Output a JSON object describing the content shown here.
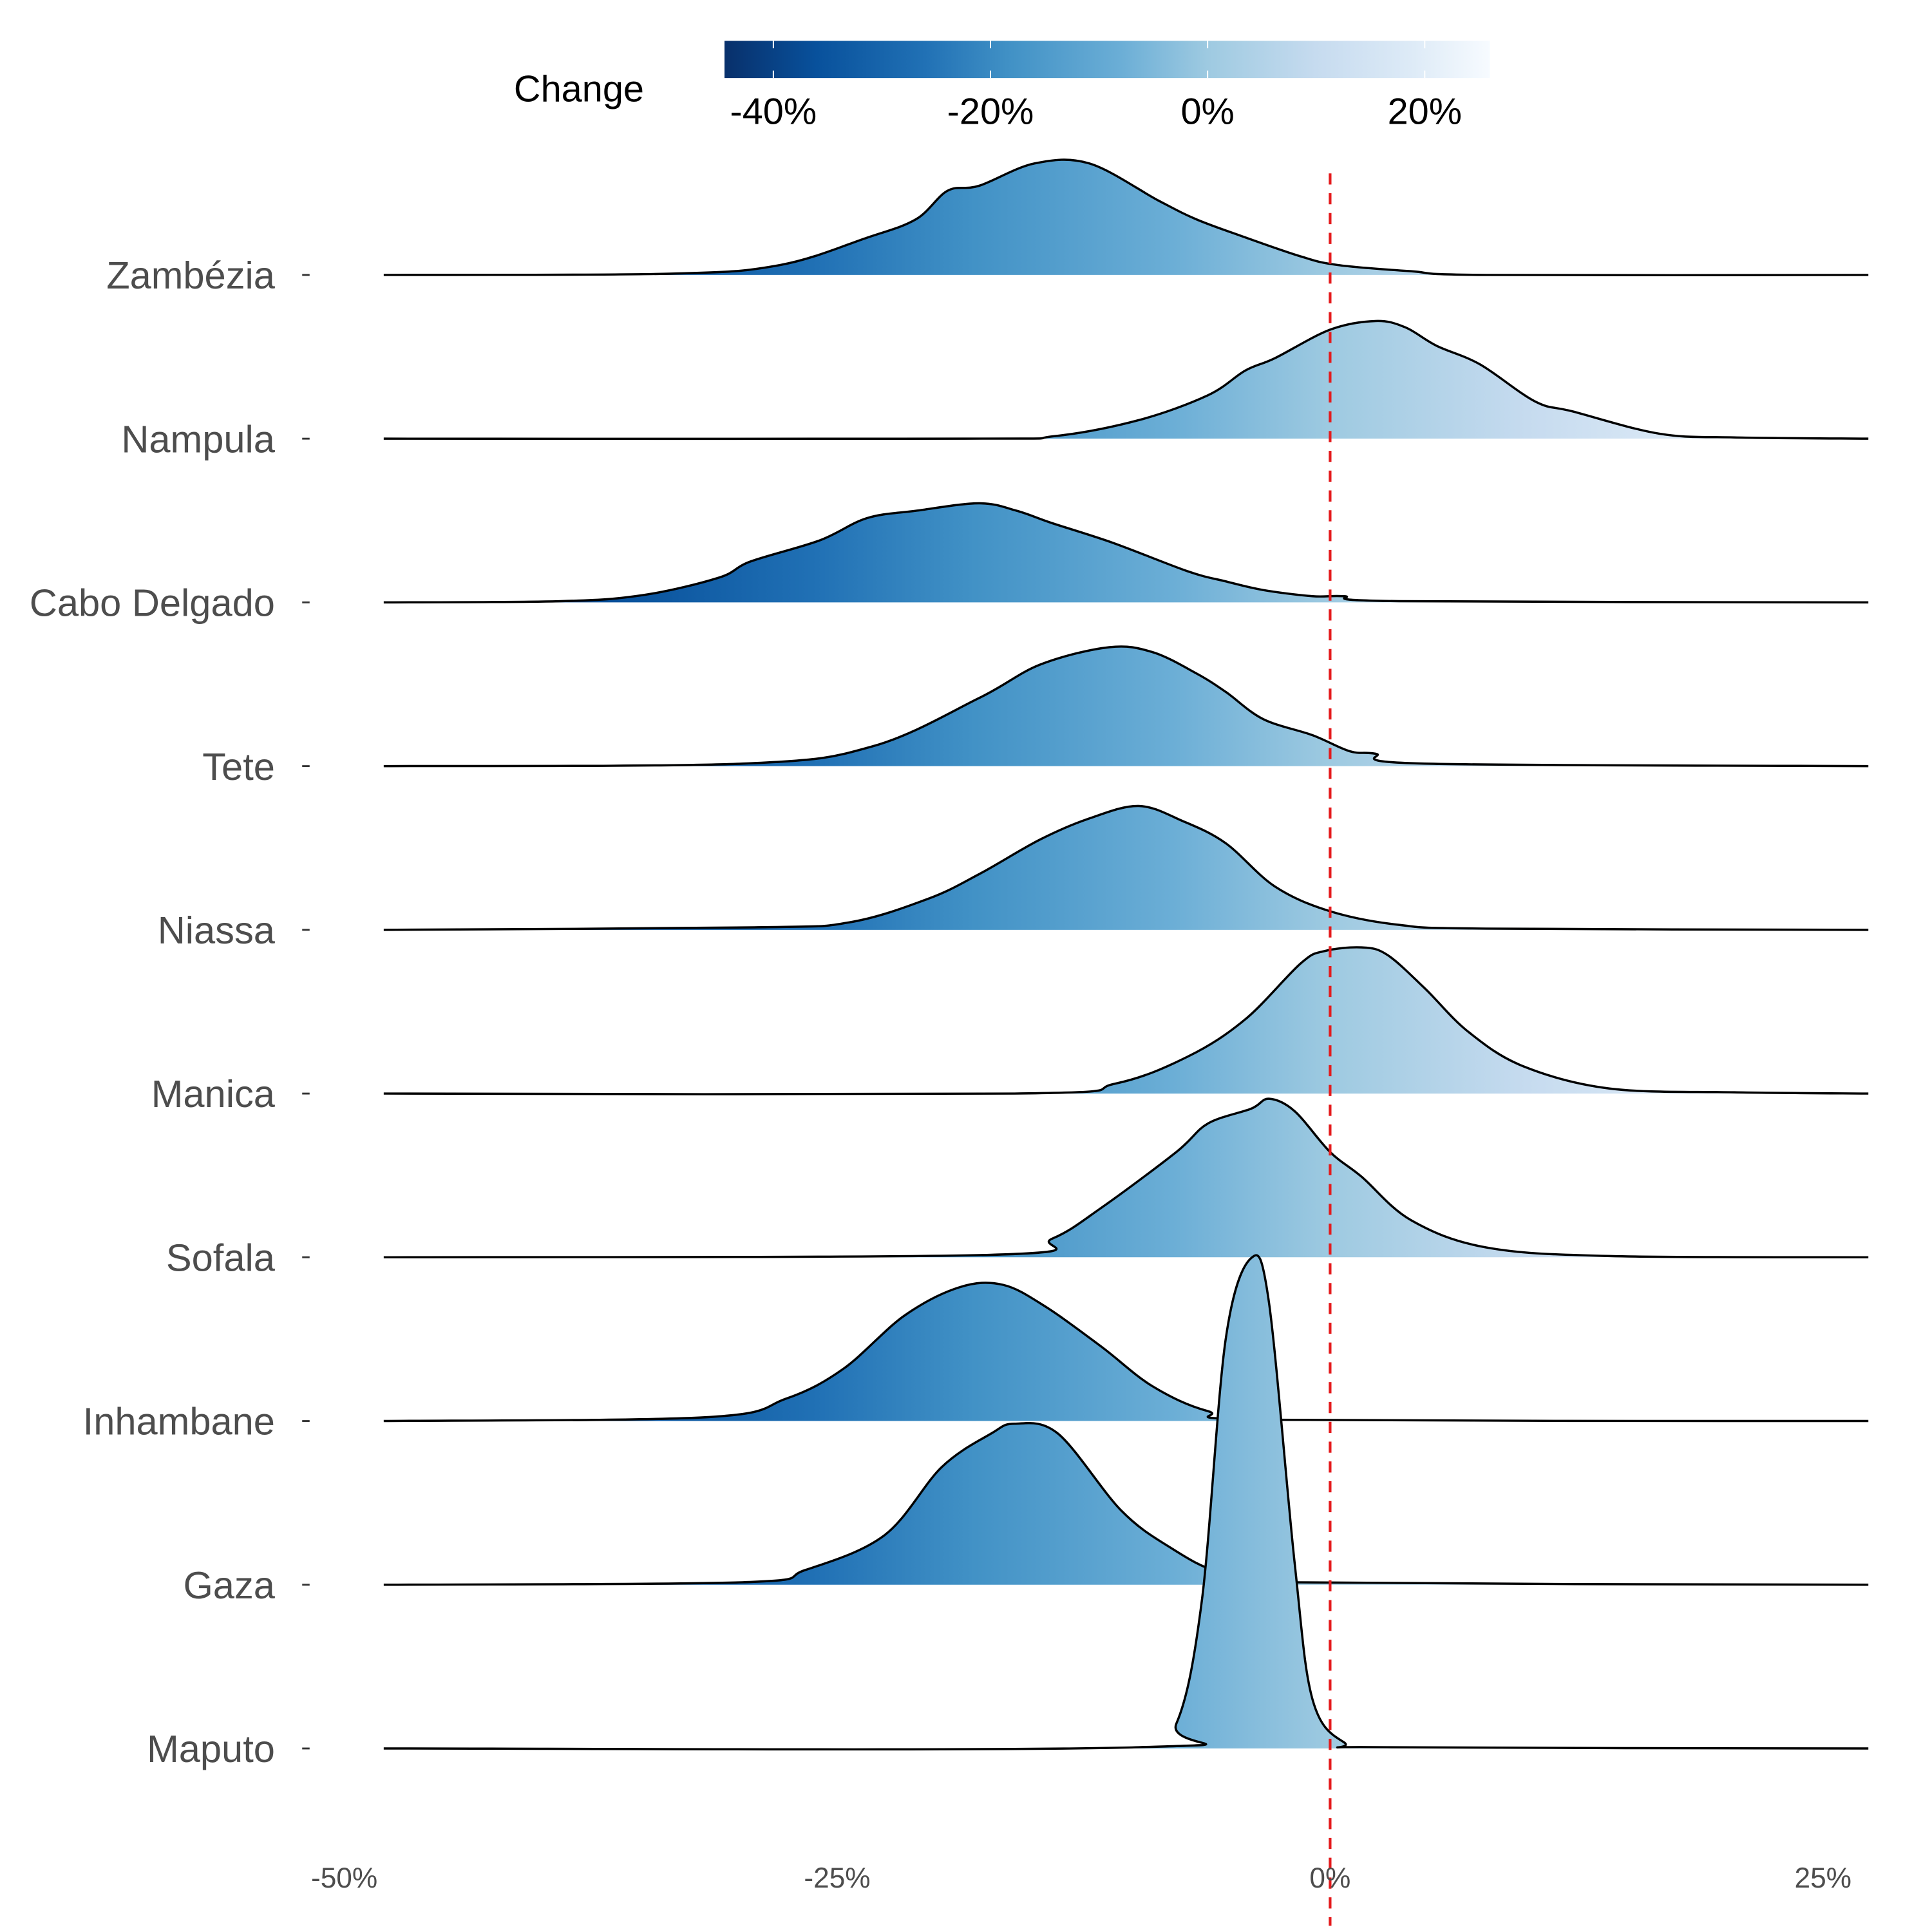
{
  "chart_data": {
    "type": "ridgeline",
    "title": "",
    "xlabel": "",
    "ylabel": "",
    "xlim": [
      -48,
      27.3
    ],
    "x_ticks": [
      -50,
      -25,
      0,
      25
    ],
    "x_tick_labels": [
      "-50%",
      "-25%",
      "0%",
      "25%"
    ],
    "reference_line": {
      "x": 0,
      "color": "#e41a1c",
      "style": "dashed"
    },
    "legend": {
      "title": "Change",
      "placement": "top",
      "range": [
        -44.5,
        26
      ],
      "ticks": [
        -40,
        -20,
        0,
        20
      ],
      "tick_labels": [
        "-40%",
        "-20%",
        "0%",
        "20%"
      ],
      "colors": [
        {
          "at": -44.5,
          "color": "#08306b"
        },
        {
          "at": -36,
          "color": "#08519c"
        },
        {
          "at": -26,
          "color": "#2171b5"
        },
        {
          "at": -18,
          "color": "#4292c6"
        },
        {
          "at": -8,
          "color": "#6baed6"
        },
        {
          "at": 0,
          "color": "#9ecae1"
        },
        {
          "at": 10,
          "color": "#c6dbef"
        },
        {
          "at": 19,
          "color": "#deebf7"
        },
        {
          "at": 26,
          "color": "#f7fbff"
        }
      ]
    },
    "series": [
      {
        "name": "Zambézia",
        "x": [
          -48,
          -33.5,
          -27.9,
          -23.5,
          -21,
          -19.4,
          -17.8,
          -15,
          -12.2,
          -8.7,
          -6.8,
          -4.6,
          -1.5,
          0.4,
          4.1,
          7.9,
          27.3
        ],
        "density": [
          0,
          0.01,
          0.08,
          0.3,
          0.45,
          0.68,
          0.72,
          0.9,
          0.9,
          0.6,
          0.45,
          0.32,
          0.15,
          0.08,
          0.03,
          0,
          0
        ]
      },
      {
        "name": "Nampula",
        "x": [
          -48,
          -18.5,
          -14,
          -9.7,
          -6.2,
          -4.3,
          -2.8,
          0,
          2.3,
          3.8,
          5.4,
          7.6,
          10.4,
          12.3,
          16.7,
          20.5,
          27.3
        ],
        "density": [
          0,
          0,
          0.02,
          0.15,
          0.35,
          0.55,
          0.65,
          0.88,
          0.95,
          0.9,
          0.75,
          0.6,
          0.3,
          0.22,
          0.04,
          0.01,
          0
        ]
      },
      {
        "name": "Cabo Delgado",
        "x": [
          -48,
          -39,
          -34.8,
          -31,
          -29.4,
          -25.9,
          -23.5,
          -21,
          -17.8,
          -15.9,
          -14.1,
          -11,
          -7.2,
          -5.3,
          -3.4,
          -0.9,
          0.7,
          3.5,
          27.3
        ],
        "density": [
          0,
          0.01,
          0.06,
          0.2,
          0.33,
          0.5,
          0.68,
          0.74,
          0.8,
          0.74,
          0.64,
          0.48,
          0.25,
          0.17,
          0.1,
          0.05,
          0.05,
          0.01,
          0
        ]
      },
      {
        "name": "Tete",
        "x": [
          -48,
          -29.8,
          -23.2,
          -17.8,
          -14.7,
          -11.2,
          -9,
          -6.8,
          -5.3,
          -3.4,
          -0.9,
          1,
          2.3,
          4.8,
          27.3
        ],
        "density": [
          0,
          0.02,
          0.16,
          0.55,
          0.82,
          0.96,
          0.92,
          0.75,
          0.6,
          0.38,
          0.25,
          0.12,
          0.1,
          0.02,
          0
        ]
      },
      {
        "name": "Niassa",
        "x": [
          -48,
          -29.2,
          -24.4,
          -20.4,
          -17.8,
          -14.7,
          -12.2,
          -9.7,
          -7.5,
          -5.3,
          -2.8,
          0,
          3.5,
          7.9,
          27.3
        ],
        "density": [
          0,
          0.02,
          0.06,
          0.25,
          0.45,
          0.73,
          0.9,
          1.0,
          0.88,
          0.7,
          0.35,
          0.15,
          0.04,
          0.01,
          0
        ]
      },
      {
        "name": "Manica",
        "x": [
          -48,
          -16,
          -10.9,
          -7.2,
          -4.3,
          -1.5,
          -0.3,
          1.6,
          2.9,
          4.8,
          7,
          9.8,
          14.2,
          20.5,
          27.3
        ],
        "density": [
          0,
          0,
          0.08,
          0.3,
          0.6,
          1.05,
          1.15,
          1.18,
          1.12,
          0.85,
          0.5,
          0.22,
          0.04,
          0.01,
          0
        ]
      },
      {
        "name": "Sofala",
        "x": [
          -48,
          -17.2,
          -14.1,
          -11.6,
          -7.8,
          -6.2,
          -4,
          -3.1,
          -1.8,
          0,
          1.6,
          4.1,
          7.9,
          14.2,
          27.3
        ],
        "density": [
          0,
          0.02,
          0.15,
          0.4,
          0.85,
          1.08,
          1.2,
          1.28,
          1.18,
          0.85,
          0.65,
          0.3,
          0.08,
          0.01,
          0
        ]
      },
      {
        "name": "Inhambane",
        "x": [
          -48,
          -31.7,
          -27.6,
          -24.7,
          -21.6,
          -18.8,
          -16.6,
          -14.4,
          -11.6,
          -9,
          -6.2,
          -2.8,
          27.3
        ],
        "density": [
          0,
          0.03,
          0.18,
          0.42,
          0.85,
          1.08,
          1.1,
          0.92,
          0.6,
          0.28,
          0.08,
          0.01,
          0
        ]
      },
      {
        "name": "Gaza",
        "x": [
          -48,
          -29.8,
          -26.6,
          -22.6,
          -19.7,
          -17.2,
          -16,
          -13.8,
          -10.6,
          -8.1,
          -5.6,
          -2.1,
          27.3
        ],
        "density": [
          0,
          0.02,
          0.12,
          0.4,
          0.95,
          1.22,
          1.3,
          1.22,
          0.6,
          0.3,
          0.1,
          0.02,
          0
        ]
      },
      {
        "name": "Maputo",
        "x": [
          -48,
          -9.7,
          -7.8,
          -6.5,
          -5.3,
          -4,
          -3.1,
          -1.8,
          -0.9,
          0.7,
          2.9,
          27.3
        ],
        "density": [
          0,
          0.01,
          0.2,
          1.2,
          3.3,
          3.96,
          3.6,
          1.5,
          0.4,
          0.05,
          0.01,
          0
        ]
      }
    ]
  }
}
